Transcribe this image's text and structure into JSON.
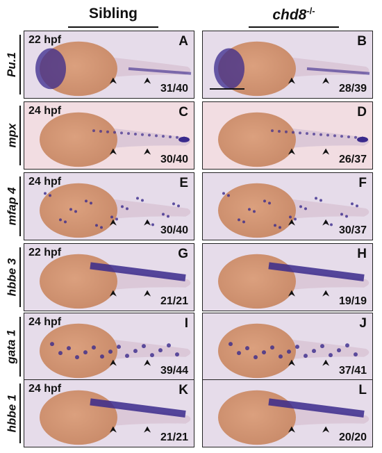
{
  "columns": {
    "sibling": "Sibling",
    "mutant": "chd8",
    "mutant_sup": "-/-"
  },
  "rows": [
    {
      "gene": "Pu.1",
      "left": {
        "stage": "22 hpf",
        "letter": "A",
        "ratio": "31/40"
      },
      "right": {
        "stage": "",
        "letter": "B",
        "ratio": "28/39"
      }
    },
    {
      "gene": "mpx",
      "left": {
        "stage": "24 hpf",
        "letter": "C",
        "ratio": "30/40"
      },
      "right": {
        "stage": "",
        "letter": "D",
        "ratio": "26/37"
      }
    },
    {
      "gene": "mfap 4",
      "left": {
        "stage": "24 hpf",
        "letter": "E",
        "ratio": "30/40"
      },
      "right": {
        "stage": "",
        "letter": "F",
        "ratio": "30/37"
      }
    },
    {
      "gene": "hbbe 3",
      "left": {
        "stage": "22 hpf",
        "letter": "G",
        "ratio": "21/21"
      },
      "right": {
        "stage": "",
        "letter": "H",
        "ratio": "19/19"
      }
    },
    {
      "gene": "gata 1",
      "left": {
        "stage": "24 hpf",
        "letter": "I",
        "ratio": "39/44"
      },
      "right": {
        "stage": "",
        "letter": "J",
        "ratio": "37/41"
      }
    },
    {
      "gene": "hbbe 1",
      "left": {
        "stage": "24 hpf",
        "letter": "K",
        "ratio": "21/21"
      },
      "right": {
        "stage": "",
        "letter": "L",
        "ratio": "20/20"
      }
    }
  ],
  "colors": {
    "yolk": "#c98b6a",
    "stain": "#3a2a8c",
    "background_lilac": "#e6dcea",
    "background_pink": "#f2dde2"
  }
}
